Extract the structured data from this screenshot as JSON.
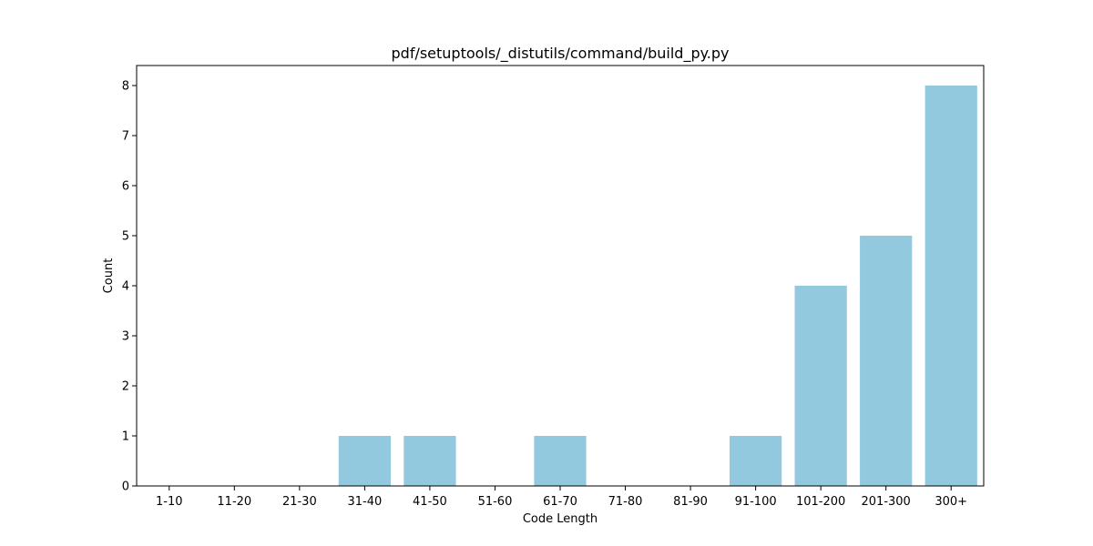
{
  "chart_data": {
    "type": "bar",
    "title": "pdf/setuptools/_distutils/command/build_py.py",
    "xlabel": "Code Length",
    "ylabel": "Count",
    "categories": [
      "1-10",
      "11-20",
      "21-30",
      "31-40",
      "41-50",
      "51-60",
      "61-70",
      "71-80",
      "81-90",
      "91-100",
      "101-200",
      "201-300",
      "300+"
    ],
    "values": [
      0,
      0,
      0,
      1,
      1,
      0,
      1,
      0,
      0,
      1,
      4,
      5,
      8
    ],
    "ylim": [
      0,
      8.4
    ],
    "yticks": [
      0,
      1,
      2,
      3,
      4,
      5,
      6,
      7,
      8
    ],
    "bar_color": "#92c9df",
    "grid": false,
    "legend": "none"
  }
}
